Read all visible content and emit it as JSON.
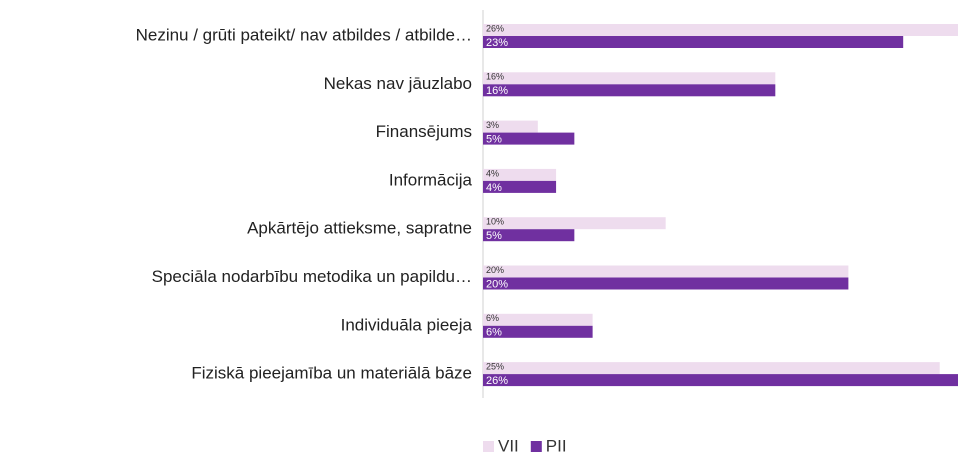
{
  "chart_data": {
    "type": "bar",
    "orientation": "horizontal",
    "categories": [
      "Nezinu / grūti pateikt/ nav atbildes / atbilde…",
      "Nekas nav jāuzlabo",
      "Finansējums",
      "Informācija",
      "Apkārtējo attieksme, sapratne",
      "Speciāla nodarbību metodika un papildu…",
      "Individuāla pieeja",
      "Fiziskā pieejamība un materiālā bāze"
    ],
    "series": [
      {
        "name": "VII",
        "color": "#eedcee",
        "values": [
          26,
          16,
          3,
          4,
          10,
          20,
          6,
          25
        ],
        "value_labels": [
          "26%",
          "16%",
          "3%",
          "4%",
          "10%",
          "20%",
          "6%",
          "25%"
        ]
      },
      {
        "name": "PII",
        "color": "#7030a0",
        "values": [
          23,
          16,
          5,
          4,
          5,
          20,
          6,
          26
        ],
        "value_labels": [
          "23%",
          "16%",
          "5%",
          "4%",
          "5%",
          "20%",
          "6%",
          "26%"
        ]
      }
    ],
    "xlim": [
      0,
      26
    ],
    "legend": "bottom"
  }
}
